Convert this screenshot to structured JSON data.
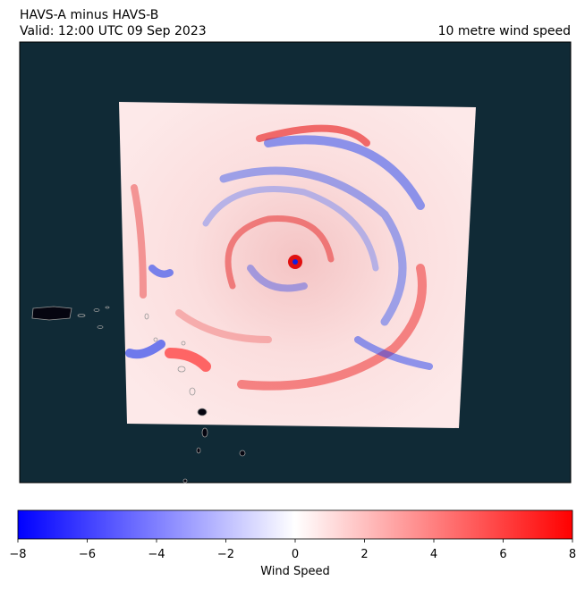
{
  "header": {
    "title": "HAVS-A minus HAVS-B",
    "subtitle": "Valid: 12:00 UTC 09 Sep 2023",
    "field": "10 metre wind speed"
  },
  "colorbar": {
    "label": "Wind Speed",
    "lim": [
      -8,
      8
    ],
    "ticks": [
      {
        "value": -8,
        "label": "−8"
      },
      {
        "value": -6,
        "label": "−6"
      },
      {
        "value": -4,
        "label": "−4"
      },
      {
        "value": -2,
        "label": "−2"
      },
      0,
      2,
      4,
      6,
      8
    ],
    "colors": [
      "#0000ff",
      "#ffffff",
      "#ff0000"
    ]
  }
}
